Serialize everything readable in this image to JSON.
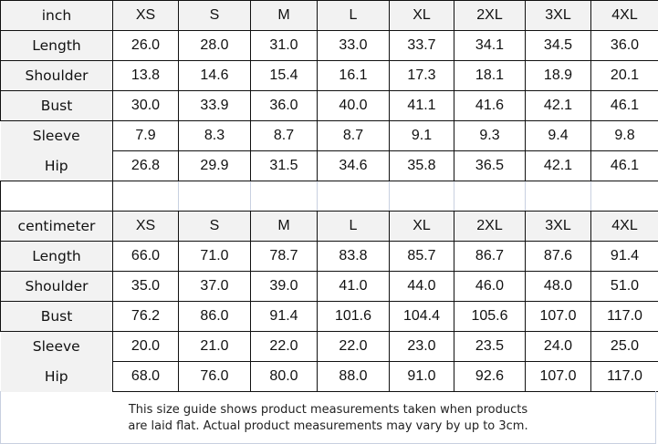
{
  "sizes": [
    "XS",
    "S",
    "M",
    "L",
    "XL",
    "2XL",
    "3XL",
    "4XL"
  ],
  "inch": {
    "unit": "inch",
    "rows": [
      {
        "label": "Length",
        "values": [
          "26.0",
          "28.0",
          "31.0",
          "33.0",
          "33.7",
          "34.1",
          "34.5",
          "36.0"
        ]
      },
      {
        "label": "Shoulder",
        "values": [
          "13.8",
          "14.6",
          "15.4",
          "16.1",
          "17.3",
          "18.1",
          "18.9",
          "20.1"
        ]
      },
      {
        "label": "Bust",
        "values": [
          "30.0",
          "33.9",
          "36.0",
          "40.0",
          "41.1",
          "41.6",
          "42.1",
          "46.1"
        ]
      },
      {
        "label": "Sleeve",
        "values": [
          "7.9",
          "8.3",
          "8.7",
          "8.7",
          "9.1",
          "9.3",
          "9.4",
          "9.8"
        ]
      },
      {
        "label": "Hip",
        "values": [
          "26.8",
          "29.9",
          "31.5",
          "34.6",
          "35.8",
          "36.5",
          "42.1",
          "46.1"
        ]
      }
    ]
  },
  "cm": {
    "unit": "centimeter",
    "rows": [
      {
        "label": "Length",
        "values": [
          "66.0",
          "71.0",
          "78.7",
          "83.8",
          "85.7",
          "86.7",
          "87.6",
          "91.4"
        ]
      },
      {
        "label": "Shoulder",
        "values": [
          "35.0",
          "37.0",
          "39.0",
          "41.0",
          "44.0",
          "46.0",
          "48.0",
          "51.0"
        ]
      },
      {
        "label": "Bust",
        "values": [
          "76.2",
          "86.0",
          "91.4",
          "101.6",
          "104.4",
          "105.6",
          "107.0",
          "117.0"
        ]
      },
      {
        "label": "Sleeve",
        "values": [
          "20.0",
          "21.0",
          "22.0",
          "22.0",
          "23.0",
          "23.5",
          "24.0",
          "25.0"
        ]
      },
      {
        "label": "Hip",
        "values": [
          "68.0",
          "76.0",
          "80.0",
          "88.0",
          "91.0",
          "92.6",
          "107.0",
          "117.0"
        ]
      }
    ]
  },
  "note": {
    "line1": "This size guide shows product measurements taken when products",
    "line2": "are laid flat. Actual product measurements may vary by up to 3cm."
  }
}
